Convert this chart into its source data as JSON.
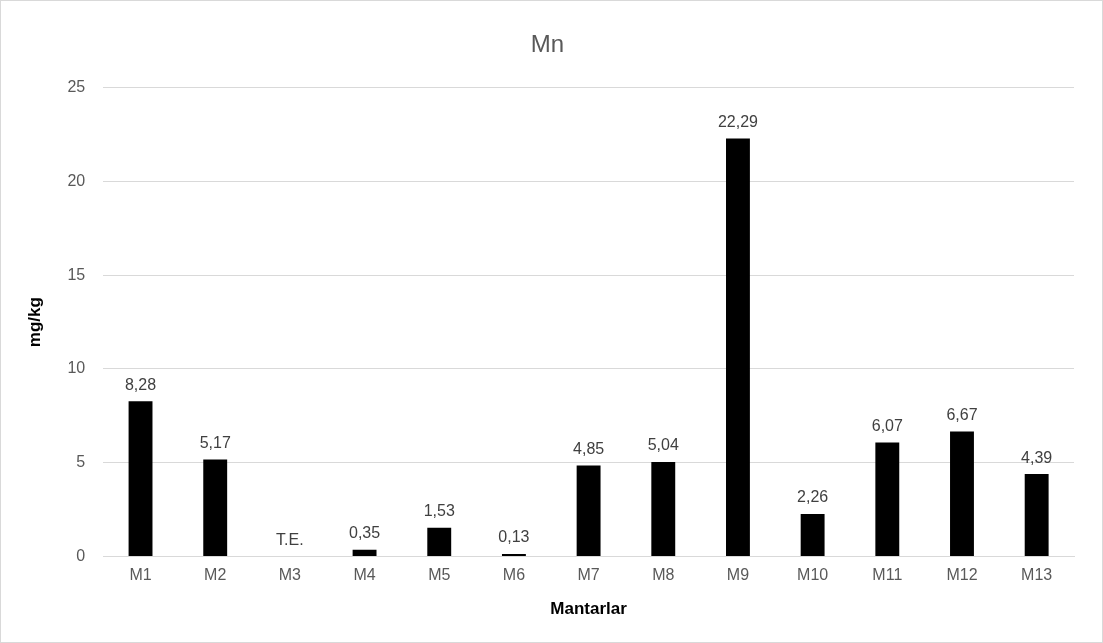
{
  "chart_data": {
    "type": "bar",
    "title": "Mn",
    "xlabel": "Mantarlar",
    "ylabel": "mg/kg",
    "categories": [
      "M1",
      "M2",
      "M3",
      "M4",
      "M5",
      "M6",
      "M7",
      "M8",
      "M9",
      "M10",
      "M11",
      "M12",
      "M13"
    ],
    "values": [
      8.28,
      5.17,
      null,
      0.35,
      1.53,
      0.13,
      4.85,
      5.04,
      22.29,
      2.26,
      6.07,
      6.67,
      4.39
    ],
    "value_labels": [
      "8,28",
      "5,17",
      "T.E.",
      "0,35",
      "1,53",
      "0,13",
      "4,85",
      "5,04",
      "22,29",
      "2,26",
      "6,07",
      "6,67",
      "4,39"
    ],
    "color": "#000000",
    "ylim": [
      0,
      25
    ],
    "yticks": [
      0,
      5,
      10,
      15,
      20,
      25
    ],
    "grid": "y",
    "legend": false
  }
}
